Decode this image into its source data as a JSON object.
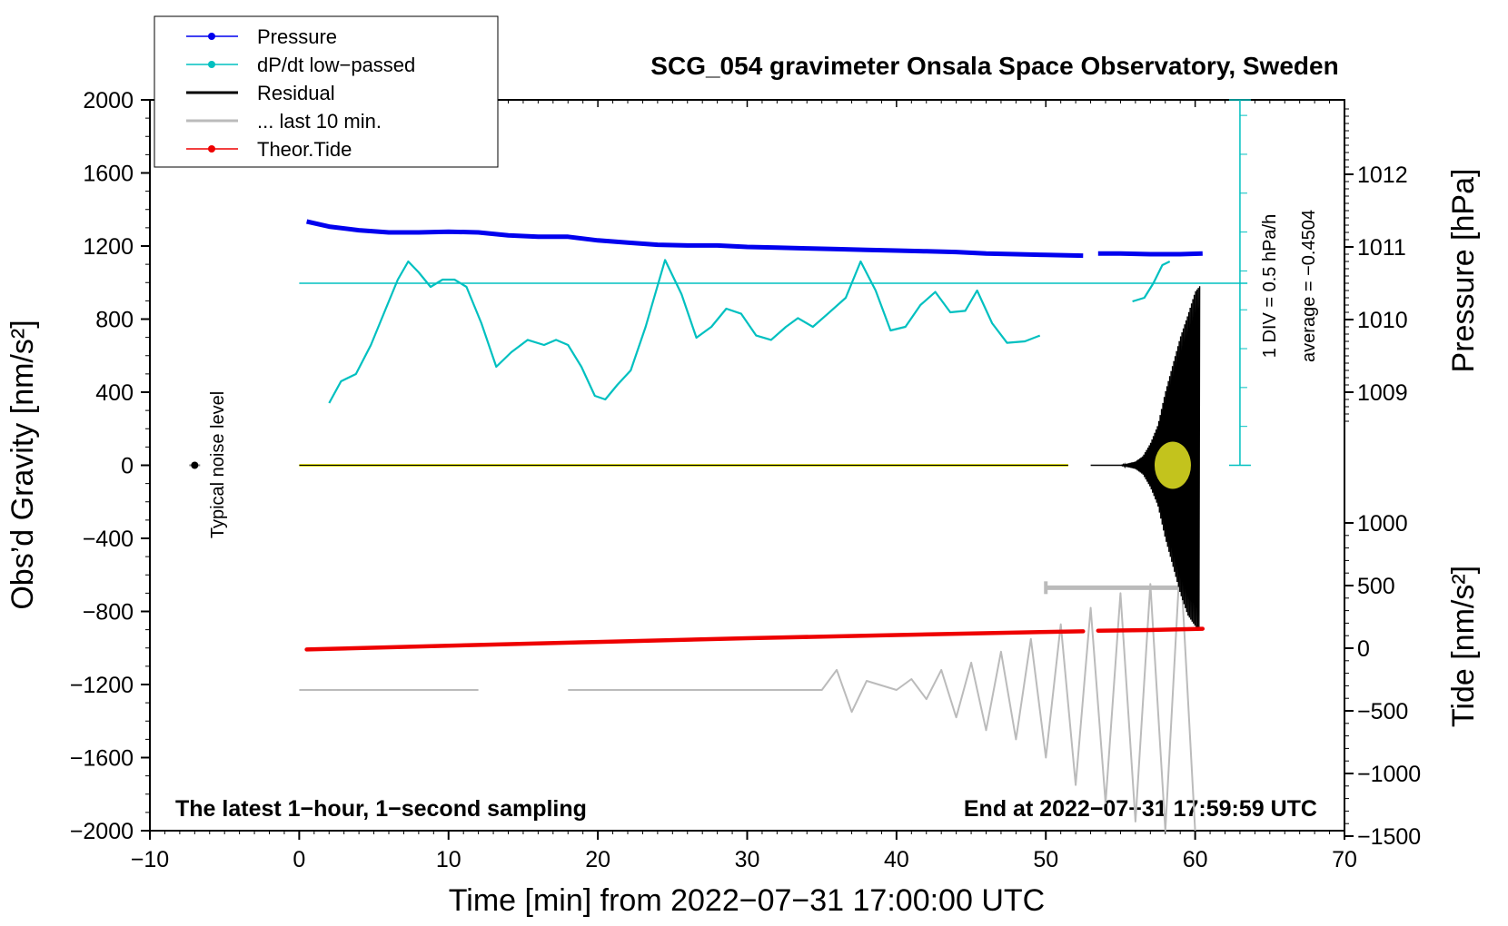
{
  "chart_data": {
    "type": "line",
    "title": "SCG_054 gravimeter Onsala Space Observatory, Sweden",
    "xlabel": "Time [min] from 2022−07−31 17:00:00 UTC",
    "ylabel_left": "Obs’d Gravity [nm/s²]",
    "ylabel_right_top": "Pressure [hPa]",
    "ylabel_right_bottom": "Tide [nm/s²]",
    "xlim": [
      -10,
      70
    ],
    "ylim": [
      -2000,
      2000
    ],
    "pressure_lim": [
      1006,
      1013
    ],
    "tide_lim": [
      -1500,
      1500
    ],
    "x_ticks": [
      "−10",
      "0",
      "10",
      "20",
      "30",
      "40",
      "50",
      "60",
      "70"
    ],
    "y_ticks": [
      "2000",
      "1600",
      "1200",
      "800",
      "400",
      "0",
      "−400",
      "−800",
      "−1200",
      "−1600",
      "−2000"
    ],
    "pressure_ticks": [
      "1012",
      "1011",
      "1010",
      "1009"
    ],
    "tide_ticks": [
      "1000",
      "500",
      "0",
      "−500",
      "−1000",
      "−1500"
    ],
    "bottom_left_note": "The latest 1−hour, 1−second sampling",
    "bottom_right_note": "End at 2022−07−31 17:59:59 UTC",
    "noise_label": "Typical noise level",
    "dpdt_scale_label": "1 DIV = 0.5 hPa/h",
    "dpdt_average_label": "average = −0.4504",
    "legend": [
      {
        "label": "Pressure",
        "color": "#0000ee",
        "marker": true
      },
      {
        "label": "dP/dt low−passed",
        "color": "#00c0c0",
        "marker": true
      },
      {
        "label": "Residual",
        "color": "#000000",
        "marker": false
      },
      {
        "label": "... last 10 min.",
        "color": "#bbbbbb",
        "marker": false
      },
      {
        "label": "Theor.Tide",
        "color": "#ee0000",
        "marker": true
      }
    ],
    "colors": {
      "pressure": "#0000ee",
      "dpdt": "#00c0c0",
      "residual": "#000000",
      "residual_fill": "#d8d820",
      "last10": "#bbbbbb",
      "tide": "#ee0000"
    },
    "series": [
      {
        "name": "Pressure",
        "axis": "pressure_hPa",
        "segments": [
          {
            "x": [
              0.5,
              2,
              4,
              6,
              8,
              10,
              12,
              14,
              16,
              18,
              20,
              22,
              24,
              26,
              28,
              30,
              32,
              34,
              36,
              38,
              40,
              42,
              44,
              46,
              48,
              50,
              52.5
            ],
            "y": [
              1011.35,
              1011.28,
              1011.23,
              1011.2,
              1011.2,
              1011.21,
              1011.2,
              1011.16,
              1011.14,
              1011.14,
              1011.09,
              1011.06,
              1011.03,
              1011.02,
              1011.02,
              1011.0,
              1010.99,
              1010.98,
              1010.97,
              1010.96,
              1010.95,
              1010.94,
              1010.93,
              1010.91,
              1010.9,
              1010.89,
              1010.88
            ]
          },
          {
            "x": [
              53.5,
              55,
              57,
              59,
              60.5
            ],
            "y": [
              1010.91,
              1010.91,
              1010.9,
              1010.9,
              1010.91
            ]
          }
        ]
      },
      {
        "name": "dP/dt low−passed",
        "axis": "dpdt_hPa_per_h",
        "reference_line_y": 0,
        "segments": [
          {
            "x": [
              2.0,
              2.8,
              3.8,
              4.8,
              5.8,
              6.6,
              7.3,
              8.0,
              8.8,
              9.6,
              10.4,
              11.2,
              12.2,
              13.2,
              14.2,
              15.3,
              16.4,
              17.2,
              18.0,
              18.9,
              19.8,
              20.5,
              21.3,
              22.2,
              23.2,
              24.5,
              25.6,
              26.6,
              27.6,
              28.6,
              29.6,
              30.6,
              31.6,
              32.6,
              33.4,
              34.4,
              35.4,
              36.6,
              37.6,
              38.6,
              39.6,
              40.6,
              41.6,
              42.6,
              43.6,
              44.6,
              45.4,
              46.4,
              47.4,
              48.6,
              49.6
            ],
            "y": [
              -1.65,
              -1.35,
              -1.25,
              -0.85,
              -0.35,
              0.05,
              0.3,
              0.15,
              -0.05,
              0.05,
              0.05,
              -0.05,
              -0.55,
              -1.15,
              -0.95,
              -0.78,
              -0.85,
              -0.78,
              -0.85,
              -1.15,
              -1.55,
              -1.6,
              -1.4,
              -1.2,
              -0.6,
              0.32,
              -0.15,
              -0.75,
              -0.6,
              -0.35,
              -0.42,
              -0.72,
              -0.78,
              -0.6,
              -0.48,
              -0.6,
              -0.42,
              -0.2,
              0.3,
              -0.1,
              -0.65,
              -0.6,
              -0.3,
              -0.12,
              -0.4,
              -0.38,
              -0.1,
              -0.55,
              -0.82,
              -0.8,
              -0.72
            ]
          },
          {
            "x": [
              55.8,
              56.6,
              57.2,
              57.8,
              58.3
            ],
            "y": [
              -0.25,
              -0.2,
              0.0,
              0.25,
              0.3
            ]
          }
        ]
      },
      {
        "name": "Residual",
        "axis": "gravity_nm_s2",
        "segments": [
          {
            "x": [
              0,
              51.5
            ],
            "y": [
              0,
              0
            ]
          },
          {
            "x": [
              53.0,
              55.0,
              56.0,
              56.5,
              57.0,
              57.5,
              58.0,
              58.5,
              59.0,
              59.5,
              60.0,
              60.3
            ],
            "y": [
              0,
              0,
              20,
              50,
              120,
              220,
              400,
              550,
              700,
              820,
              950,
              980
            ]
          }
        ],
        "envelope_max": [
          0,
          0,
          20,
          50,
          120,
          220,
          400,
          550,
          700,
          820,
          950,
          980
        ],
        "envelope_min": [
          0,
          0,
          -20,
          -50,
          -120,
          -220,
          -400,
          -550,
          -700,
          -820,
          -880,
          -900
        ]
      },
      {
        "name": "... last 10 min.",
        "axis": "gravity_nm_s2",
        "offset_level": -1230,
        "segments": [
          {
            "x": [
              0,
              12
            ],
            "y": [
              -1230,
              -1230
            ]
          },
          {
            "x": [
              18,
              35,
              36,
              37,
              38,
              40,
              41,
              42,
              43,
              44,
              45,
              46,
              47,
              48,
              49,
              50,
              51,
              52,
              53,
              54,
              55,
              56,
              57,
              58,
              59,
              60
            ],
            "y": [
              -1230,
              -1230,
              -1120,
              -1350,
              -1180,
              -1230,
              -1170,
              -1280,
              -1120,
              -1380,
              -1080,
              -1450,
              -1020,
              -1500,
              -950,
              -1600,
              -870,
              -1750,
              -780,
              -1850,
              -700,
              -1950,
              -650,
              -2000,
              -500,
              -2000
            ]
          }
        ]
      },
      {
        "name": "Theor.Tide",
        "axis": "tide_nm_s2",
        "segments": [
          {
            "x": [
              0.5,
              10,
              20,
              30,
              40,
              50,
              52.5
            ],
            "y": [
              -10,
              20,
              50,
              80,
              105,
              130,
              135
            ]
          },
          {
            "x": [
              53.5,
              57,
              60.5
            ],
            "y": [
              140,
              145,
              155
            ]
          }
        ]
      }
    ],
    "last10_bar": {
      "x_start": 50,
      "x_end": 60,
      "y": -670
    },
    "noise_bar": {
      "x": -7,
      "y": 0
    }
  }
}
